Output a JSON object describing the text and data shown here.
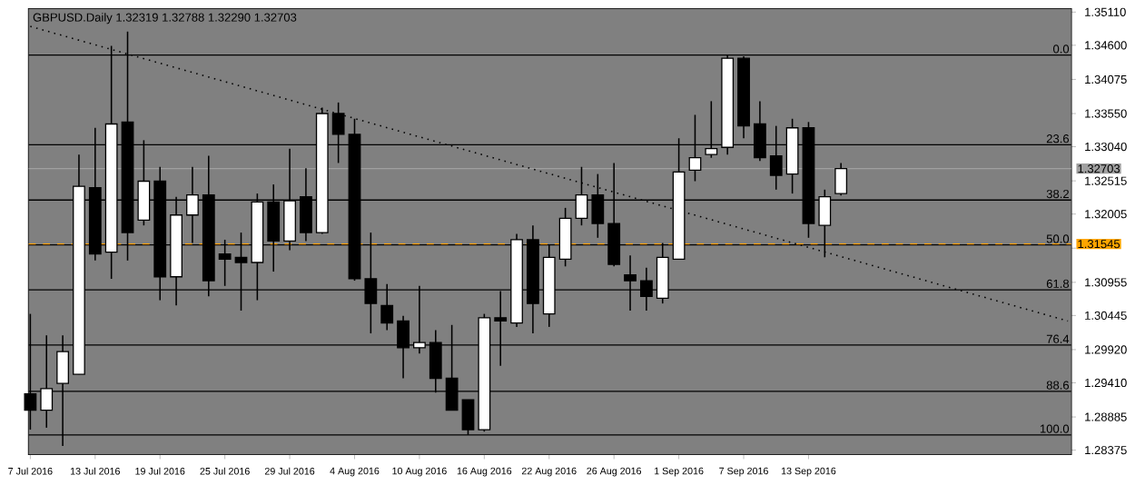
{
  "chart_data": {
    "type": "candlestick",
    "title": "GBPUSD.Daily  1.32319 1.32788 1.32290 1.32703",
    "categories": [
      "7 Jul 2016",
      null,
      null,
      null,
      "13 Jul 2016",
      null,
      null,
      null,
      "19 Jul 2016",
      null,
      null,
      null,
      "25 Jul 2016",
      null,
      null,
      null,
      "29 Jul 2016",
      null,
      null,
      null,
      "4 Aug 2016",
      null,
      null,
      null,
      "10 Aug 2016",
      null,
      null,
      null,
      "16 Aug 2016",
      null,
      null,
      null,
      "22 Aug 2016",
      null,
      null,
      null,
      "26 Aug 2016",
      null,
      null,
      null,
      "1 Sep 2016",
      null,
      null,
      null,
      "7 Sep 2016",
      null,
      null,
      null,
      "13 Sep 2016",
      null,
      null,
      null,
      null,
      null,
      null,
      null,
      null,
      null,
      null,
      null,
      null,
      null,
      null,
      null,
      null
    ],
    "ohlc": [
      [
        1.2924,
        1.3047,
        1.2869,
        1.2899
      ],
      [
        1.2899,
        1.3014,
        1.2872,
        1.2932
      ],
      [
        1.294,
        1.3014,
        1.2844,
        1.2989
      ],
      [
        1.2954,
        1.3292,
        1.2954,
        1.3243
      ],
      [
        1.3241,
        1.3333,
        1.3129,
        1.3139
      ],
      [
        1.3142,
        1.3459,
        1.3101,
        1.3339
      ],
      [
        1.3342,
        1.3481,
        1.3129,
        1.3172
      ],
      [
        1.3191,
        1.3314,
        1.3183,
        1.3251
      ],
      [
        1.3251,
        1.3273,
        1.3068,
        1.3104
      ],
      [
        1.3104,
        1.3227,
        1.306,
        1.3199
      ],
      [
        1.3199,
        1.3273,
        1.3156,
        1.323
      ],
      [
        1.323,
        1.329,
        1.3074,
        1.3098
      ],
      [
        1.3139,
        1.3161,
        1.309,
        1.3131
      ],
      [
        1.3134,
        1.3172,
        1.3052,
        1.3126
      ],
      [
        1.3126,
        1.3232,
        1.3068,
        1.3219
      ],
      [
        1.3219,
        1.3246,
        1.3112,
        1.3159
      ],
      [
        1.3159,
        1.3301,
        1.3145,
        1.3221
      ],
      [
        1.3227,
        1.3271,
        1.3159,
        1.3172
      ],
      [
        1.3172,
        1.3364,
        1.317,
        1.3355
      ],
      [
        1.3355,
        1.3372,
        1.3279,
        1.3323
      ],
      [
        1.3323,
        1.3347,
        1.3098,
        1.3101
      ],
      [
        1.3101,
        1.3172,
        1.3017,
        1.3063
      ],
      [
        1.306,
        1.3093,
        1.3022,
        1.3033
      ],
      [
        1.3036,
        1.3044,
        1.2948,
        1.2995
      ],
      [
        1.2995,
        1.309,
        1.2986,
        1.3003
      ],
      [
        1.3003,
        1.3022,
        1.2926,
        1.2948
      ],
      [
        1.2948,
        1.303,
        1.2899,
        1.2899
      ],
      [
        1.2915,
        1.2915,
        1.2861,
        1.2869
      ],
      [
        1.2869,
        1.3047,
        1.2866,
        1.3041
      ],
      [
        1.3041,
        1.3082,
        1.2967,
        1.3036
      ],
      [
        1.3033,
        1.317,
        1.3027,
        1.3161
      ],
      [
        1.3161,
        1.3183,
        1.3017,
        1.3063
      ],
      [
        1.3047,
        1.3153,
        1.3027,
        1.3134
      ],
      [
        1.3131,
        1.321,
        1.312,
        1.3194
      ],
      [
        1.3194,
        1.3273,
        1.3183,
        1.323
      ],
      [
        1.323,
        1.3262,
        1.3164,
        1.3186
      ],
      [
        1.3186,
        1.3279,
        1.312,
        1.3123
      ],
      [
        1.3107,
        1.3137,
        1.3052,
        1.3098
      ],
      [
        1.3098,
        1.3118,
        1.3052,
        1.3074
      ],
      [
        1.3071,
        1.3156,
        1.3063,
        1.3134
      ],
      [
        1.3131,
        1.3317,
        1.3131,
        1.3265
      ],
      [
        1.3268,
        1.3353,
        1.3251,
        1.3287
      ],
      [
        1.3292,
        1.3374,
        1.3287,
        1.3301
      ],
      [
        1.3303,
        1.3445,
        1.3292,
        1.344
      ],
      [
        1.344,
        1.3443,
        1.3317,
        1.3336
      ],
      [
        1.3339,
        1.3374,
        1.3282,
        1.3287
      ],
      [
        1.329,
        1.3336,
        1.3238,
        1.326
      ],
      [
        1.3262,
        1.3347,
        1.3232,
        1.3333
      ],
      [
        1.3333,
        1.3342,
        1.3164,
        1.3186
      ],
      [
        1.3183,
        1.3238,
        1.3134,
        1.3227
      ],
      [
        1.32319,
        1.32788,
        1.3229,
        1.32703
      ],
      null,
      null,
      null,
      null,
      null,
      null,
      null,
      null,
      null,
      null,
      null,
      null,
      null,
      null
    ],
    "series": [
      {
        "type": "line",
        "color": "#000000",
        "line_style": "dotted",
        "values": [
          1.3489,
          null,
          null,
          null,
          null,
          null,
          null,
          null,
          null,
          null,
          null,
          null,
          null,
          null,
          null,
          null,
          null,
          null,
          null,
          null,
          null,
          null,
          null,
          null,
          null,
          null,
          null,
          null,
          null,
          null,
          null,
          null,
          null,
          null,
          null,
          null,
          null,
          null,
          null,
          null,
          null,
          null,
          null,
          null,
          null,
          null,
          null,
          null,
          null,
          null,
          null,
          null,
          null,
          null,
          null,
          null,
          null,
          null,
          null,
          null,
          null,
          null,
          null,
          null,
          1.3036
        ]
      }
    ],
    "ylim": [
      1.2831,
      1.3516
    ],
    "yticks": [
      {
        "value": 1.3511,
        "label": "1.35110"
      },
      {
        "value": 1.346,
        "label": "1.34600"
      },
      {
        "value": 1.34075,
        "label": "1.34075"
      },
      {
        "value": 1.3355,
        "label": "1.33550"
      },
      {
        "value": 1.3304,
        "label": "1.33040"
      },
      {
        "value": 1.32515,
        "label": "1.32515"
      },
      {
        "value": 1.32005,
        "label": "1.32005"
      },
      {
        "value": 1.3148,
        "label": null
      },
      {
        "value": 1.30955,
        "label": "1.30955"
      },
      {
        "value": 1.30445,
        "label": "1.30445"
      },
      {
        "value": 1.2992,
        "label": "1.29920"
      },
      {
        "value": 1.2941,
        "label": "1.29410"
      },
      {
        "value": 1.28885,
        "label": "1.28885"
      },
      {
        "value": 1.28375,
        "label": "1.28375"
      }
    ],
    "ref_lines": [
      {
        "axis": "y",
        "value": 1.3445
      },
      {
        "axis": "y",
        "value": 1.3307
      },
      {
        "axis": "y",
        "value": 1.3222
      },
      {
        "axis": "y",
        "value": 1.3153
      },
      {
        "axis": "y",
        "value": 1.3084
      },
      {
        "axis": "y",
        "value": 1.2999
      },
      {
        "axis": "y",
        "value": 1.2928
      },
      {
        "axis": "y",
        "value": 1.2861
      },
      {
        "axis": "y",
        "value": 1.32703,
        "label": "1.32703",
        "color": "#a0a0a0"
      },
      {
        "axis": "y",
        "value": 1.31545,
        "label": "1.31545",
        "color": "#ffa500",
        "line_style": "dashed"
      }
    ],
    "annotations": [
      {
        "text": "0.0",
        "y": 1.3445
      },
      {
        "text": "23.6",
        "y": 1.3307
      },
      {
        "text": "38.2",
        "y": 1.3222
      },
      {
        "text": "50.0",
        "y": 1.3153
      },
      {
        "text": "61.8",
        "y": 1.3084
      },
      {
        "text": "76.4",
        "y": 1.2999
      },
      {
        "text": "88.6",
        "y": 1.2928
      },
      {
        "text": "100.0",
        "y": 1.2861
      }
    ]
  }
}
